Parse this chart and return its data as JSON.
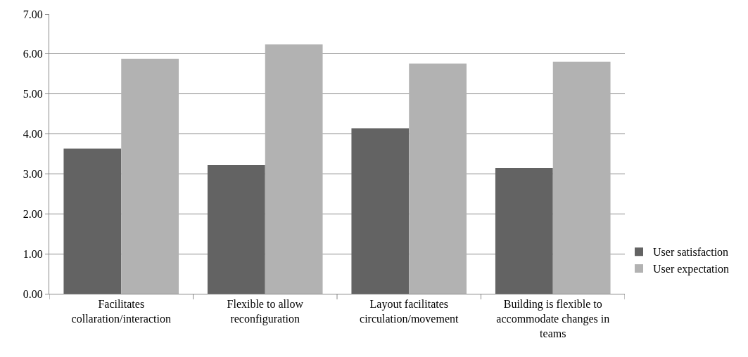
{
  "chart_data": {
    "type": "bar",
    "categories": [
      "Facilitates collaration/interaction",
      "Flexible to allow reconfiguration",
      "Layout facilitates circulation/movement",
      "Building is flexible to accommodate changes in teams"
    ],
    "series": [
      {
        "name": "User satisfaction",
        "color": "#636363",
        "values": [
          3.63,
          3.22,
          4.14,
          3.15
        ]
      },
      {
        "name": "User expectation",
        "color": "#b2b2b2",
        "values": [
          5.88,
          6.24,
          5.76,
          5.81
        ]
      }
    ],
    "ylim": [
      0,
      7
    ],
    "yticks": [
      {
        "value": 0,
        "label": "0.00"
      },
      {
        "value": 1,
        "label": "1.00"
      },
      {
        "value": 2,
        "label": "2.00"
      },
      {
        "value": 3,
        "label": "3.00"
      },
      {
        "value": 4,
        "label": "4.00"
      },
      {
        "value": 5,
        "label": "5.00"
      },
      {
        "value": 6,
        "label": "6.00"
      },
      {
        "value": 7,
        "label": "7.00"
      }
    ],
    "grid": "y",
    "legend": "bottom right"
  }
}
